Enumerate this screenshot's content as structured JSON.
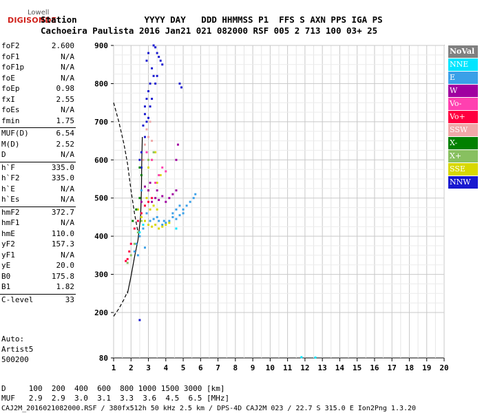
{
  "logo": {
    "top": "Lowell",
    "main": "DIGISONDE"
  },
  "header": {
    "line1": "Station             YYYY DAY   DDD HHMMSS P1  FFS S AXN PPS IGA PS",
    "line2": "Cachoeira Paulista 2016 Jan21 021 082000 RSF 005 2 713 100 03+ 25"
  },
  "params": [
    {
      "label": "foF2",
      "value": "2.600"
    },
    {
      "label": "foF1",
      "value": "N/A"
    },
    {
      "label": "foF1p",
      "value": "N/A"
    },
    {
      "label": "foE",
      "value": "N/A"
    },
    {
      "label": "foEp",
      "value": "0.98"
    },
    {
      "label": "fxI",
      "value": "2.55"
    },
    {
      "label": "foEs",
      "value": "N/A"
    },
    {
      "label": "fmin",
      "value": "1.75"
    },
    {
      "label": "MUF(D)",
      "value": "6.54"
    },
    {
      "label": "M(D)",
      "value": "2.52"
    },
    {
      "label": "D",
      "value": "N/A"
    },
    {
      "label": "h`F",
      "value": "335.0"
    },
    {
      "label": "h`F2",
      "value": "335.0"
    },
    {
      "label": "h`E",
      "value": "N/A"
    },
    {
      "label": "h`Es",
      "value": "N/A"
    },
    {
      "label": "hmF2",
      "value": "372.7"
    },
    {
      "label": "hmF1",
      "value": "N/A"
    },
    {
      "label": "hmE",
      "value": "110.0"
    },
    {
      "label": "yF2",
      "value": "157.3"
    },
    {
      "label": "yF1",
      "value": "N/A"
    },
    {
      "label": "yE",
      "value": "20.0"
    },
    {
      "label": "B0",
      "value": "175.8"
    },
    {
      "label": "B1",
      "value": "1.82"
    },
    {
      "label": "C-level",
      "value": "33"
    }
  ],
  "auto": {
    "line1": "Auto:",
    "line2": "Artist5",
    "line3": "500200"
  },
  "legend": [
    {
      "label": "NoVal",
      "color": "#808080"
    },
    {
      "label": "NNE",
      "color": "#00e5ff"
    },
    {
      "label": "E",
      "color": "#3aa0e8"
    },
    {
      "label": "W",
      "color": "#a000a0"
    },
    {
      "label": "Vo-",
      "color": "#ff40b0"
    },
    {
      "label": "Vo+",
      "color": "#ff0040"
    },
    {
      "label": "SSW",
      "color": "#f0a8a8"
    },
    {
      "label": "X-",
      "color": "#008000"
    },
    {
      "label": "X+",
      "color": "#88c060"
    },
    {
      "label": "SSE",
      "color": "#d8d800"
    },
    {
      "label": "NNW",
      "color": "#1818d0"
    }
  ],
  "distance_table": {
    "row1": "D     100  200  400  600  800 1000 1500 3000 [km]",
    "row2": "MUF   2.9  2.9  3.0  3.1  3.3  3.6  4.5  6.5 [MHz]"
  },
  "footer": "CAJ2M_2016021082000.RSF / 380fx512h 50 kHz 2.5 km / DPS-4D CAJ2M 023 / 22.7 S 315.0 E Ion2Png 1.3.20",
  "chart_data": {
    "type": "scatter",
    "x_ticks": [
      "1",
      "2",
      "3",
      "4",
      "5",
      "6",
      "7",
      "8",
      "9",
      "10",
      "11",
      "12",
      "13",
      "14",
      "15",
      "16",
      "17",
      "18",
      "19",
      "20"
    ],
    "y_ticks": [
      "80",
      "200",
      "300",
      "400",
      "500",
      "600",
      "700",
      "800",
      "900"
    ],
    "xlim": [
      1,
      20
    ],
    "ylim": [
      80,
      900
    ],
    "y_scale": "nonlinear-stretched-80-to-200",
    "grid": true,
    "profile_solid": [
      [
        1.8,
        250
      ],
      [
        2.0,
        295
      ],
      [
        2.2,
        345
      ],
      [
        2.4,
        390
      ],
      [
        2.55,
        450
      ],
      [
        2.6,
        520
      ],
      [
        2.62,
        600
      ],
      [
        2.65,
        660
      ]
    ],
    "profile_dashed_lower": [
      [
        1.0,
        190
      ],
      [
        1.3,
        210
      ],
      [
        1.6,
        235
      ],
      [
        1.8,
        255
      ]
    ],
    "profile_dashed_upper": [
      [
        1.0,
        750
      ],
      [
        1.3,
        700
      ],
      [
        1.6,
        640
      ],
      [
        1.8,
        590
      ],
      [
        2.0,
        520
      ],
      [
        2.2,
        460
      ],
      [
        2.4,
        410
      ]
    ],
    "series": [
      {
        "name": "NNW",
        "color": "#1818d0",
        "points": [
          [
            3.3,
            900
          ],
          [
            3.4,
            895
          ],
          [
            3.5,
            880
          ],
          [
            3.6,
            870
          ],
          [
            3.7,
            860
          ],
          [
            3.8,
            850
          ],
          [
            3.2,
            840
          ],
          [
            3.3,
            820
          ],
          [
            3.1,
            800
          ],
          [
            3.0,
            780
          ],
          [
            2.9,
            760
          ],
          [
            2.8,
            740
          ],
          [
            2.8,
            720
          ],
          [
            2.9,
            700
          ],
          [
            2.7,
            690
          ],
          [
            2.8,
            660
          ],
          [
            2.6,
            620
          ],
          [
            2.5,
            600
          ],
          [
            2.6,
            580
          ],
          [
            3.1,
            740
          ],
          [
            3.0,
            710
          ],
          [
            3.2,
            760
          ],
          [
            3.4,
            800
          ],
          [
            3.5,
            820
          ],
          [
            3.0,
            880
          ],
          [
            2.9,
            860
          ],
          [
            2.5,
            180
          ],
          [
            4.8,
            800
          ],
          [
            4.9,
            790
          ]
        ]
      },
      {
        "name": "E",
        "color": "#3aa0e8",
        "points": [
          [
            3.8,
            430
          ],
          [
            3.9,
            440
          ],
          [
            4.0,
            435
          ],
          [
            4.2,
            440
          ],
          [
            4.4,
            450
          ],
          [
            4.6,
            445
          ],
          [
            4.8,
            455
          ],
          [
            5.0,
            460
          ],
          [
            5.2,
            480
          ],
          [
            5.4,
            490
          ],
          [
            5.6,
            500
          ],
          [
            5.7,
            510
          ],
          [
            4.8,
            480
          ],
          [
            5.0,
            470
          ],
          [
            3.5,
            450
          ],
          [
            3.6,
            440
          ],
          [
            3.3,
            445
          ],
          [
            3.1,
            440
          ],
          [
            2.9,
            460
          ],
          [
            2.7,
            420
          ],
          [
            2.5,
            400
          ],
          [
            2.3,
            380
          ],
          [
            2.6,
            520
          ],
          [
            4.4,
            460
          ],
          [
            4.6,
            470
          ],
          [
            2.2,
            360
          ],
          [
            2.4,
            350
          ],
          [
            2.8,
            370
          ]
        ]
      },
      {
        "name": "SSE",
        "color": "#d8d800",
        "points": [
          [
            3.0,
            430
          ],
          [
            3.2,
            425
          ],
          [
            3.4,
            430
          ],
          [
            3.6,
            420
          ],
          [
            3.8,
            425
          ],
          [
            4.0,
            430
          ],
          [
            4.2,
            435
          ],
          [
            2.8,
            440
          ],
          [
            2.6,
            450
          ],
          [
            2.4,
            470
          ],
          [
            3.1,
            470
          ],
          [
            3.3,
            480
          ],
          [
            3.5,
            470
          ],
          [
            2.9,
            500
          ],
          [
            3.0,
            520
          ],
          [
            3.5,
            540
          ],
          [
            3.7,
            560
          ],
          [
            3.0,
            580
          ],
          [
            3.2,
            600
          ],
          [
            3.4,
            620
          ]
        ]
      },
      {
        "name": "W",
        "color": "#a000a0",
        "points": [
          [
            3.2,
            490
          ],
          [
            3.4,
            500
          ],
          [
            3.6,
            495
          ],
          [
            3.8,
            505
          ],
          [
            4.0,
            490
          ],
          [
            4.2,
            500
          ],
          [
            4.4,
            510
          ],
          [
            4.6,
            520
          ],
          [
            4.6,
            600
          ],
          [
            4.7,
            640
          ],
          [
            3.0,
            520
          ],
          [
            2.8,
            530
          ],
          [
            3.1,
            540
          ],
          [
            3.5,
            520
          ],
          [
            2.6,
            490
          ]
        ]
      },
      {
        "name": "Vo+",
        "color": "#ff0040",
        "points": [
          [
            2.2,
            420
          ],
          [
            2.4,
            440
          ],
          [
            2.6,
            460
          ],
          [
            2.8,
            480
          ],
          [
            3.0,
            490
          ],
          [
            3.2,
            500
          ],
          [
            2.0,
            380
          ],
          [
            1.9,
            360
          ],
          [
            1.8,
            340
          ],
          [
            1.7,
            335
          ]
        ]
      },
      {
        "name": "Vo-",
        "color": "#ff40b0",
        "points": [
          [
            3.4,
            540
          ],
          [
            3.6,
            560
          ],
          [
            3.8,
            580
          ],
          [
            4.0,
            570
          ],
          [
            3.2,
            600
          ],
          [
            2.9,
            620
          ]
        ]
      },
      {
        "name": "SSW",
        "color": "#f0a8a8",
        "points": [
          [
            2.8,
            640
          ],
          [
            3.0,
            660
          ],
          [
            3.2,
            650
          ],
          [
            2.9,
            680
          ],
          [
            3.1,
            700
          ],
          [
            2.7,
            600
          ]
        ]
      },
      {
        "name": "X+",
        "color": "#88c060",
        "points": [
          [
            1.8,
            330
          ],
          [
            2.0,
            350
          ],
          [
            2.2,
            380
          ],
          [
            2.4,
            410
          ],
          [
            2.6,
            440
          ],
          [
            2.3,
            470
          ],
          [
            3.0,
            600
          ],
          [
            3.3,
            620
          ]
        ]
      },
      {
        "name": "X-",
        "color": "#008000",
        "points": [
          [
            2.1,
            440
          ],
          [
            2.3,
            470
          ],
          [
            2.5,
            500
          ],
          [
            2.6,
            560
          ],
          [
            2.5,
            580
          ]
        ]
      },
      {
        "name": "NNE",
        "color": "#00e5ff",
        "points": [
          [
            2.5,
            410
          ],
          [
            2.7,
            430
          ],
          [
            4.6,
            420
          ],
          [
            11.8,
            82
          ],
          [
            12.6,
            81
          ]
        ]
      }
    ]
  }
}
